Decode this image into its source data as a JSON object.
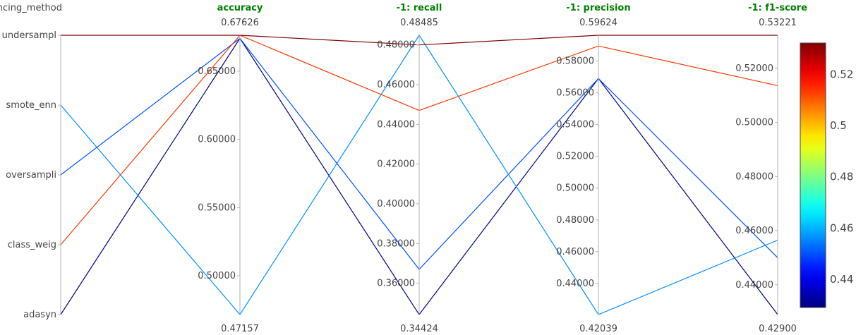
{
  "chart_data": {
    "type": "parallel_coordinates",
    "dimensions": [
      {
        "label": "balancing_method",
        "kind": "categorical",
        "categories": [
          "undersampl",
          "smote_enn",
          "oversampli",
          "class_weig",
          "adasyn"
        ]
      },
      {
        "label": "accuracy",
        "kind": "numeric",
        "min_label": "0.47157",
        "max_label": "0.67626",
        "range": [
          0.47157,
          0.67626
        ],
        "ticks": [
          0.5,
          0.55,
          0.6,
          0.65
        ],
        "tick_labels": [
          "0.50000",
          "0.55000",
          "0.60000",
          "0.65000"
        ]
      },
      {
        "label": "-1: recall",
        "kind": "numeric",
        "min_label": "0.34424",
        "max_label": "0.48485",
        "range": [
          0.34424,
          0.48485
        ],
        "ticks": [
          0.36,
          0.38,
          0.4,
          0.42,
          0.44,
          0.46,
          0.48
        ],
        "tick_labels": [
          "0.36000",
          "0.38000",
          "0.40000",
          "0.42000",
          "0.44000",
          "0.46000",
          "0.48000"
        ]
      },
      {
        "label": "-1: precision",
        "kind": "numeric",
        "min_label": "0.42039",
        "max_label": "0.59624",
        "range": [
          0.42039,
          0.59624
        ],
        "ticks": [
          0.44,
          0.46,
          0.48,
          0.5,
          0.52,
          0.54,
          0.56,
          0.58
        ],
        "tick_labels": [
          "0.44000",
          "0.46000",
          "0.48000",
          "0.50000",
          "0.52000",
          "0.54000",
          "0.56000",
          "0.58000"
        ]
      },
      {
        "label": "-1: f1-score",
        "kind": "numeric",
        "min_label": "0.42900",
        "max_label": "0.53221",
        "range": [
          0.429,
          0.53221
        ],
        "ticks": [
          0.44,
          0.46,
          0.48,
          0.5,
          0.52
        ],
        "tick_labels": [
          "0.44000",
          "0.46000",
          "0.48000",
          "0.50000",
          "0.52000"
        ]
      }
    ],
    "rows": [
      {
        "balancing_method": "undersampl",
        "values": [
          0.67626,
          0.48,
          0.59624,
          0.53221
        ],
        "color_value": 0.53221
      },
      {
        "balancing_method": "smote_enn",
        "values": [
          0.47157,
          0.48485,
          0.42039,
          0.4565
        ],
        "color_value": 0.4565
      },
      {
        "balancing_method": "oversampli",
        "values": [
          0.674,
          0.367,
          0.569,
          0.45
        ],
        "color_value": 0.45
      },
      {
        "balancing_method": "class_weig",
        "values": [
          0.67626,
          0.447,
          0.5895,
          0.5136
        ],
        "color_value": 0.5136
      },
      {
        "balancing_method": "adasyn",
        "values": [
          0.674,
          0.34424,
          0.569,
          0.429
        ],
        "color_value": 0.429
      }
    ],
    "colorbar": {
      "colorscale": "jet",
      "range": [
        0.429,
        0.53221
      ],
      "ticks": [
        0.44,
        0.46,
        0.48,
        0.5,
        0.52
      ],
      "tick_labels": [
        "0.44",
        "0.46",
        "0.48",
        "0.5",
        "0.52"
      ]
    }
  }
}
